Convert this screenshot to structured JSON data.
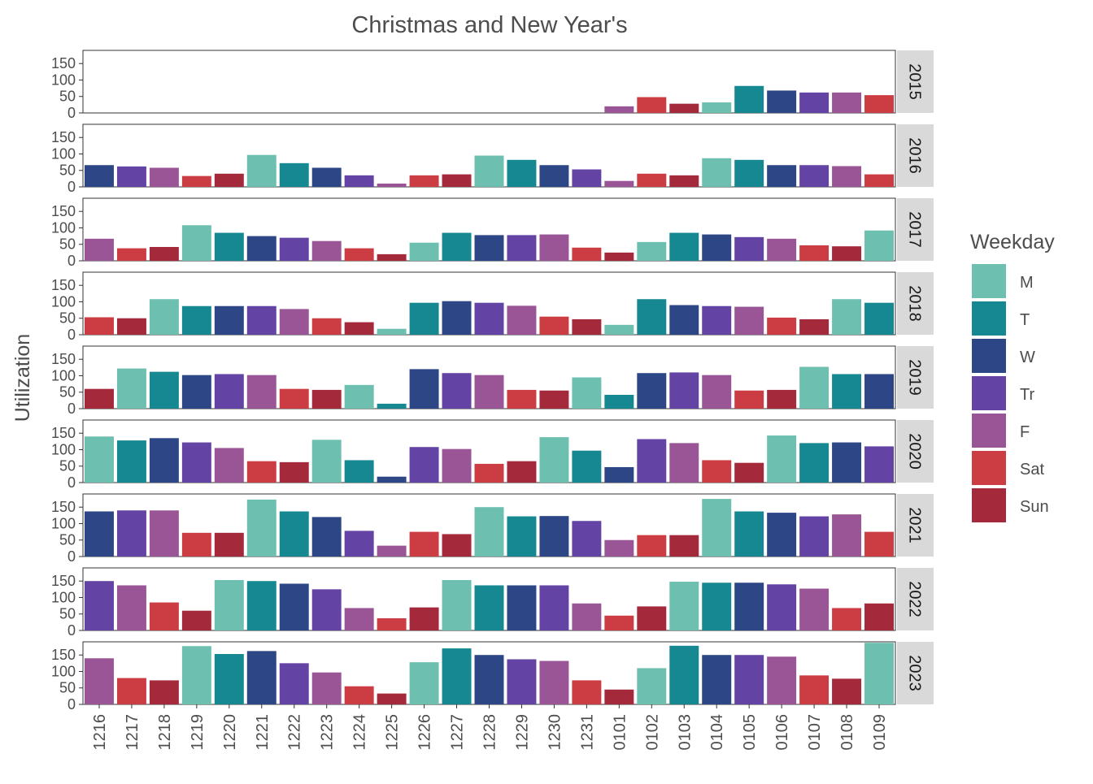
{
  "chart_data": {
    "type": "bar",
    "title": "Christmas and New Year's",
    "xlabel": "",
    "ylabel": "Utilization",
    "ylim": [
      0,
      190
    ],
    "yticks": [
      0,
      50,
      100,
      150
    ],
    "grid": false,
    "legend_position": "right",
    "legend_title": "Weekday",
    "weekday_colors": {
      "M": "#6dc0b0",
      "T": "#168891",
      "W": "#2d4686",
      "Tr": "#6344a5",
      "F": "#9a5596",
      "Sat": "#cc3d43",
      "Sun": "#a3293b"
    },
    "legend": [
      "M",
      "T",
      "W",
      "Tr",
      "F",
      "Sat",
      "Sun"
    ],
    "categories": [
      "1216",
      "1217",
      "1218",
      "1219",
      "1220",
      "1221",
      "1222",
      "1223",
      "1224",
      "1225",
      "1226",
      "1227",
      "1228",
      "1229",
      "1230",
      "1231",
      "0101",
      "0102",
      "0103",
      "0104",
      "0105",
      "0106",
      "0107",
      "0108",
      "0109"
    ],
    "panels": [
      {
        "year": "2015",
        "weekdays": [
          "W",
          "Tr",
          "F",
          "Sat",
          "Sun",
          "M",
          "T",
          "W",
          "Tr",
          "F",
          "Sat",
          "Sun",
          "M",
          "T",
          "W",
          "Tr",
          "F",
          "Sat",
          "Sun",
          "M",
          "T",
          "W",
          "Tr",
          "F",
          "Sat"
        ],
        "values": [
          0,
          0,
          0,
          0,
          0,
          0,
          0,
          0,
          0,
          0,
          0,
          0,
          0,
          0,
          0,
          0,
          20,
          48,
          28,
          32,
          82,
          68,
          62,
          62,
          54
        ]
      },
      {
        "year": "2016",
        "weekdays": [
          "W",
          "Tr",
          "F",
          "Sat",
          "Sun",
          "M",
          "T",
          "W",
          "Tr",
          "F",
          "Sat",
          "Sun",
          "M",
          "T",
          "W",
          "Tr",
          "F",
          "Sat",
          "Sun",
          "M",
          "T",
          "W",
          "Tr",
          "F",
          "Sat"
        ],
        "values": [
          66,
          62,
          58,
          33,
          40,
          97,
          72,
          58,
          35,
          10,
          35,
          38,
          95,
          82,
          66,
          53,
          18,
          40,
          35,
          87,
          82,
          66,
          66,
          63,
          38
        ]
      },
      {
        "year": "2017",
        "weekdays": [
          "F",
          "Sat",
          "Sun",
          "M",
          "T",
          "W",
          "Tr",
          "F",
          "Sat",
          "Sun",
          "M",
          "T",
          "W",
          "Tr",
          "F",
          "Sat",
          "Sun",
          "M",
          "T",
          "W",
          "Tr",
          "F",
          "Sat",
          "Sun",
          "M"
        ],
        "values": [
          67,
          38,
          42,
          108,
          85,
          75,
          70,
          60,
          38,
          20,
          55,
          85,
          78,
          78,
          80,
          40,
          25,
          57,
          85,
          80,
          72,
          67,
          47,
          44,
          92
        ]
      },
      {
        "year": "2018",
        "weekdays": [
          "Sat",
          "Sun",
          "M",
          "T",
          "W",
          "Tr",
          "F",
          "Sat",
          "Sun",
          "M",
          "T",
          "W",
          "Tr",
          "F",
          "Sat",
          "Sun",
          "M",
          "T",
          "W",
          "Tr",
          "F",
          "Sat",
          "Sun",
          "M",
          "T"
        ],
        "values": [
          53,
          50,
          108,
          87,
          87,
          87,
          78,
          50,
          38,
          18,
          97,
          102,
          97,
          88,
          55,
          47,
          30,
          108,
          90,
          87,
          85,
          52,
          47,
          108,
          97
        ]
      },
      {
        "year": "2019",
        "weekdays": [
          "Sun",
          "M",
          "T",
          "W",
          "Tr",
          "F",
          "Sat",
          "Sun",
          "M",
          "T",
          "W",
          "Tr",
          "F",
          "Sat",
          "Sun",
          "M",
          "T",
          "W",
          "Tr",
          "F",
          "Sat",
          "Sun",
          "M",
          "T",
          "W"
        ],
        "values": [
          60,
          122,
          112,
          102,
          105,
          102,
          60,
          57,
          72,
          15,
          120,
          108,
          102,
          57,
          55,
          95,
          42,
          108,
          110,
          102,
          55,
          57,
          127,
          105,
          105
        ]
      },
      {
        "year": "2020",
        "weekdays": [
          "M",
          "T",
          "W",
          "Tr",
          "F",
          "Sat",
          "Sun",
          "M",
          "T",
          "W",
          "Tr",
          "F",
          "Sat",
          "Sun",
          "M",
          "T",
          "W",
          "Tr",
          "F",
          "Sat",
          "Sun",
          "M",
          "T",
          "W",
          "Tr"
        ],
        "values": [
          140,
          128,
          135,
          122,
          105,
          65,
          62,
          130,
          68,
          18,
          108,
          102,
          57,
          65,
          138,
          97,
          47,
          132,
          120,
          68,
          60,
          143,
          120,
          122,
          110
        ]
      },
      {
        "year": "2021",
        "weekdays": [
          "W",
          "Tr",
          "F",
          "Sat",
          "Sun",
          "M",
          "T",
          "W",
          "Tr",
          "F",
          "Sat",
          "Sun",
          "M",
          "T",
          "W",
          "Tr",
          "F",
          "Sat",
          "Sun",
          "M",
          "T",
          "W",
          "Tr",
          "F",
          "Sat"
        ],
        "values": [
          137,
          140,
          140,
          72,
          72,
          173,
          137,
          120,
          78,
          33,
          75,
          68,
          150,
          122,
          123,
          108,
          50,
          65,
          65,
          175,
          137,
          133,
          122,
          128,
          75
        ]
      },
      {
        "year": "2022",
        "weekdays": [
          "Tr",
          "F",
          "Sat",
          "Sun",
          "M",
          "T",
          "W",
          "Tr",
          "F",
          "Sat",
          "Sun",
          "M",
          "T",
          "W",
          "Tr",
          "F",
          "Sat",
          "Sun",
          "M",
          "T",
          "W",
          "Tr",
          "F",
          "Sat",
          "Sun"
        ],
        "values": [
          150,
          137,
          85,
          60,
          153,
          150,
          142,
          125,
          68,
          37,
          70,
          153,
          137,
          137,
          137,
          82,
          45,
          73,
          148,
          145,
          145,
          140,
          127,
          68,
          82
        ]
      },
      {
        "year": "2023",
        "weekdays": [
          "F",
          "Sat",
          "Sun",
          "M",
          "T",
          "W",
          "Tr",
          "F",
          "Sat",
          "Sun",
          "M",
          "T",
          "W",
          "Tr",
          "F",
          "Sat",
          "Sun",
          "M",
          "T",
          "W",
          "Tr",
          "F",
          "Sat",
          "Sun",
          "M"
        ],
        "values": [
          140,
          80,
          73,
          177,
          153,
          162,
          125,
          97,
          55,
          33,
          128,
          170,
          150,
          137,
          132,
          73,
          45,
          110,
          178,
          150,
          150,
          145,
          88,
          78,
          187
        ]
      }
    ]
  }
}
